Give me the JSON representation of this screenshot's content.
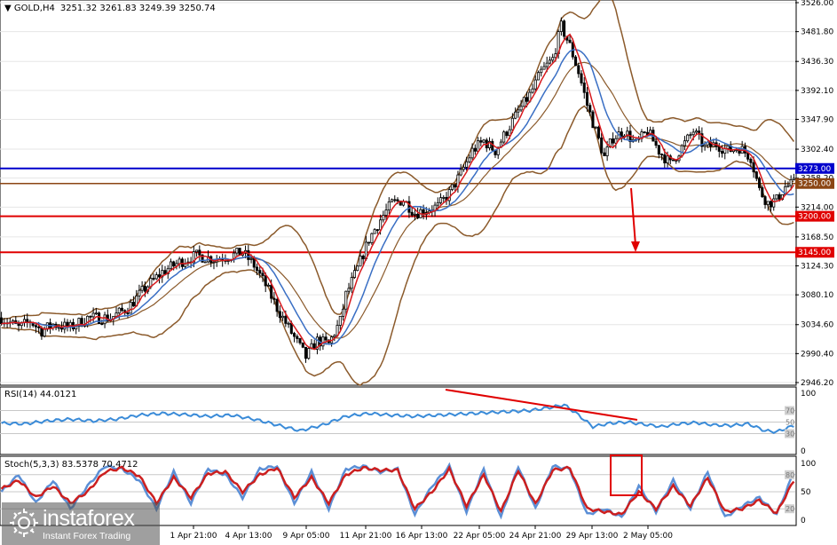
{
  "header": {
    "symbol": "GOLD,H4",
    "ohlc": "3251.32 3261.83 3249.39 3250.74",
    "rsi": "RSI(14) 44.0121",
    "stoch": "Stoch(5,3,3) 83.5378 70.4712"
  },
  "colors": {
    "candle": "#000000",
    "bollinger": "#8B5A2B",
    "ma_fast": "#D7191C",
    "ma_slow": "#3A6FC4",
    "level_blue": "#0000CC",
    "level_red": "#E00000",
    "level_brown": "#8B4513",
    "rsi": "#3A8BD8",
    "stoch_main": "#5B8FD6",
    "stoch_signal": "#CC1F1F",
    "annotation": "#E00000"
  },
  "logo": {
    "name": "instaforex",
    "tagline": "Instant Forex Trading"
  },
  "chart_data": [
    {
      "type": "candlestick",
      "title": "GOLD,H4",
      "ylim": [
        2946.2,
        3526.0
      ],
      "yticks": [
        "3526.00",
        "3481.80",
        "3436.30",
        "3392.10",
        "3347.90",
        "3302.40",
        "3258.20",
        "3214.00",
        "3168.50",
        "3124.30",
        "3080.10",
        "3034.60",
        "2990.40",
        "2946.20"
      ],
      "xticks": [
        "1 Apr 21:00",
        "4 Apr 13:00",
        "9 Apr 05:00",
        "11 Apr 21:00",
        "16 Apr 13:00",
        "22 Apr 05:00",
        "24 Apr 21:00",
        "29 Apr 13:00",
        "2 May 05:00"
      ],
      "levels": [
        {
          "label": "3273.00",
          "value": 3273.0,
          "color": "blue"
        },
        {
          "label": "3250.00",
          "value": 3250.0,
          "color": "brown"
        },
        {
          "label": "3200.00",
          "value": 3200.0,
          "color": "red"
        },
        {
          "label": "3145.00",
          "value": 3145.0,
          "color": "red"
        }
      ],
      "close_path": [
        [
          0,
          3045
        ],
        [
          6,
          3030
        ],
        [
          10,
          3040
        ],
        [
          14,
          3025
        ],
        [
          18,
          3035
        ],
        [
          24,
          3030
        ],
        [
          30,
          3045
        ],
        [
          38,
          3045
        ],
        [
          44,
          3060
        ],
        [
          50,
          3090
        ],
        [
          56,
          3115
        ],
        [
          62,
          3130
        ],
        [
          68,
          3140
        ],
        [
          74,
          3135
        ],
        [
          80,
          3140
        ],
        [
          84,
          3145
        ],
        [
          88,
          3125
        ],
        [
          92,
          3095
        ],
        [
          96,
          3060
        ],
        [
          100,
          3030
        ],
        [
          104,
          3000
        ],
        [
          106,
          2985
        ],
        [
          110,
          3010
        ],
        [
          114,
          3005
        ],
        [
          118,
          3040
        ],
        [
          120,
          3080
        ],
        [
          124,
          3120
        ],
        [
          128,
          3165
        ],
        [
          132,
          3195
        ],
        [
          136,
          3220
        ],
        [
          140,
          3225
        ],
        [
          144,
          3205
        ],
        [
          148,
          3210
        ],
        [
          152,
          3215
        ],
        [
          156,
          3235
        ],
        [
          160,
          3265
        ],
        [
          164,
          3300
        ],
        [
          168,
          3315
        ],
        [
          172,
          3300
        ],
        [
          176,
          3330
        ],
        [
          180,
          3360
        ],
        [
          184,
          3385
        ],
        [
          188,
          3420
        ],
        [
          192,
          3440
        ],
        [
          195,
          3490
        ],
        [
          198,
          3460
        ],
        [
          201,
          3420
        ],
        [
          204,
          3370
        ],
        [
          207,
          3330
        ],
        [
          210,
          3290
        ],
        [
          213,
          3320
        ],
        [
          217,
          3330
        ],
        [
          221,
          3310
        ],
        [
          225,
          3330
        ],
        [
          229,
          3300
        ],
        [
          233,
          3280
        ],
        [
          237,
          3305
        ],
        [
          241,
          3330
        ],
        [
          245,
          3305
        ],
        [
          249,
          3310
        ],
        [
          253,
          3300
        ],
        [
          257,
          3305
        ],
        [
          261,
          3290
        ],
        [
          264,
          3240
        ],
        [
          267,
          3220
        ],
        [
          270,
          3225
        ],
        [
          273,
          3245
        ],
        [
          276,
          3250
        ]
      ],
      "n_bars": 277
    },
    {
      "type": "line",
      "title": "RSI(14) 44.0121",
      "ylim": [
        0,
        100
      ],
      "yticks": [
        "100",
        "70",
        "50",
        "30",
        "0"
      ],
      "series": [
        {
          "name": "RSI(14)",
          "x": [
            0,
            8,
            16,
            24,
            32,
            40,
            48,
            56,
            64,
            72,
            80,
            88,
            96,
            104,
            112,
            120,
            128,
            136,
            144,
            152,
            160,
            168,
            176,
            184,
            192,
            196,
            200,
            206,
            212,
            218,
            224,
            230,
            236,
            242,
            248,
            254,
            260,
            266,
            270,
            276
          ],
          "values": [
            48,
            47,
            52,
            55,
            52,
            55,
            62,
            65,
            63,
            60,
            62,
            55,
            45,
            35,
            45,
            60,
            65,
            62,
            60,
            62,
            64,
            66,
            68,
            70,
            76,
            80,
            66,
            42,
            48,
            50,
            46,
            42,
            47,
            49,
            45,
            44,
            47,
            35,
            33,
            44
          ]
        }
      ]
    },
    {
      "type": "line",
      "title": "Stoch(5,3,3) 83.5378 70.4712",
      "ylim": [
        0,
        100
      ],
      "yticks": [
        "100",
        "80",
        "50",
        "20",
        "0"
      ],
      "series": [
        {
          "name": "main",
          "x": [
            0,
            6,
            12,
            18,
            24,
            30,
            36,
            42,
            48,
            54,
            60,
            66,
            72,
            78,
            84,
            90,
            96,
            102,
            108,
            114,
            120,
            126,
            132,
            138,
            144,
            150,
            156,
            162,
            168,
            174,
            180,
            186,
            192,
            198,
            204,
            210,
            216,
            222,
            228,
            234,
            240,
            246,
            252,
            258,
            264,
            270,
            276
          ],
          "values": [
            50,
            80,
            30,
            70,
            20,
            60,
            95,
            90,
            70,
            20,
            85,
            30,
            90,
            80,
            40,
            90,
            95,
            30,
            85,
            20,
            90,
            95,
            85,
            90,
            10,
            60,
            95,
            15,
            90,
            5,
            95,
            20,
            95,
            90,
            10,
            20,
            5,
            60,
            15,
            70,
            20,
            85,
            5,
            25,
            40,
            10,
            84
          ]
        },
        {
          "name": "signal",
          "x": [
            0,
            6,
            12,
            18,
            24,
            30,
            36,
            42,
            48,
            54,
            60,
            66,
            72,
            78,
            84,
            90,
            96,
            102,
            108,
            114,
            120,
            126,
            132,
            138,
            144,
            150,
            156,
            162,
            168,
            174,
            180,
            186,
            192,
            198,
            204,
            210,
            216,
            222,
            228,
            234,
            240,
            246,
            252,
            258,
            264,
            270,
            276
          ],
          "values": [
            55,
            70,
            40,
            60,
            30,
            50,
            85,
            92,
            78,
            30,
            75,
            40,
            82,
            85,
            50,
            80,
            92,
            40,
            75,
            30,
            80,
            92,
            88,
            88,
            20,
            50,
            90,
            25,
            80,
            15,
            88,
            28,
            88,
            92,
            20,
            15,
            10,
            50,
            20,
            60,
            25,
            75,
            15,
            20,
            35,
            12,
            70
          ]
        }
      ]
    }
  ]
}
